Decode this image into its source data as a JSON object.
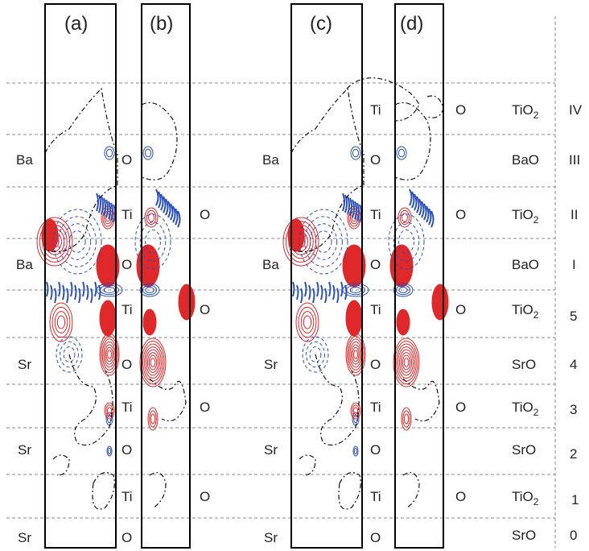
{
  "panels": [
    {
      "id": "a",
      "label": "(a)"
    },
    {
      "id": "b",
      "label": "(b)"
    },
    {
      "id": "c",
      "label": "(c)"
    },
    {
      "id": "d",
      "label": "(d)"
    }
  ],
  "row_atoms": [
    "",
    "Ba",
    "",
    "Ba",
    "",
    "Sr",
    "",
    "Sr",
    "",
    "Sr"
  ],
  "inner_atoms": [
    "",
    "O",
    "Ti",
    "O",
    "Ti",
    "O",
    "Ti",
    "O",
    "Ti",
    "O"
  ],
  "inner_atoms_cd": [
    "Ti",
    "O",
    "Ti",
    "O",
    "Ti",
    "O",
    "Ti",
    "O",
    "Ti",
    "O"
  ],
  "right_atoms": [
    "",
    "",
    "O",
    "",
    "O",
    "",
    "O",
    "",
    "O",
    ""
  ],
  "right_atoms_cd": [
    "O",
    "",
    "O",
    "",
    "O",
    "",
    "O",
    "",
    "O",
    ""
  ],
  "layers": [
    {
      "name": "TiO",
      "sub": "2",
      "index": "IV"
    },
    {
      "name": "BaO",
      "sub": "",
      "index": "III"
    },
    {
      "name": "TiO",
      "sub": "2",
      "index": "II"
    },
    {
      "name": "BaO",
      "sub": "",
      "index": "I"
    },
    {
      "name": "TiO",
      "sub": "2",
      "index": "5"
    },
    {
      "name": "SrO",
      "sub": "",
      "index": "4"
    },
    {
      "name": "TiO",
      "sub": "2",
      "index": "3"
    },
    {
      "name": "SrO",
      "sub": "",
      "index": "2"
    },
    {
      "name": "TiO",
      "sub": "2",
      "index": "1"
    },
    {
      "name": "SrO",
      "sub": "",
      "index": "0"
    }
  ],
  "colors": {
    "positive": "#e0282a",
    "negative": "#2a4fb8",
    "zero": "#111111",
    "grid": "#888888"
  }
}
